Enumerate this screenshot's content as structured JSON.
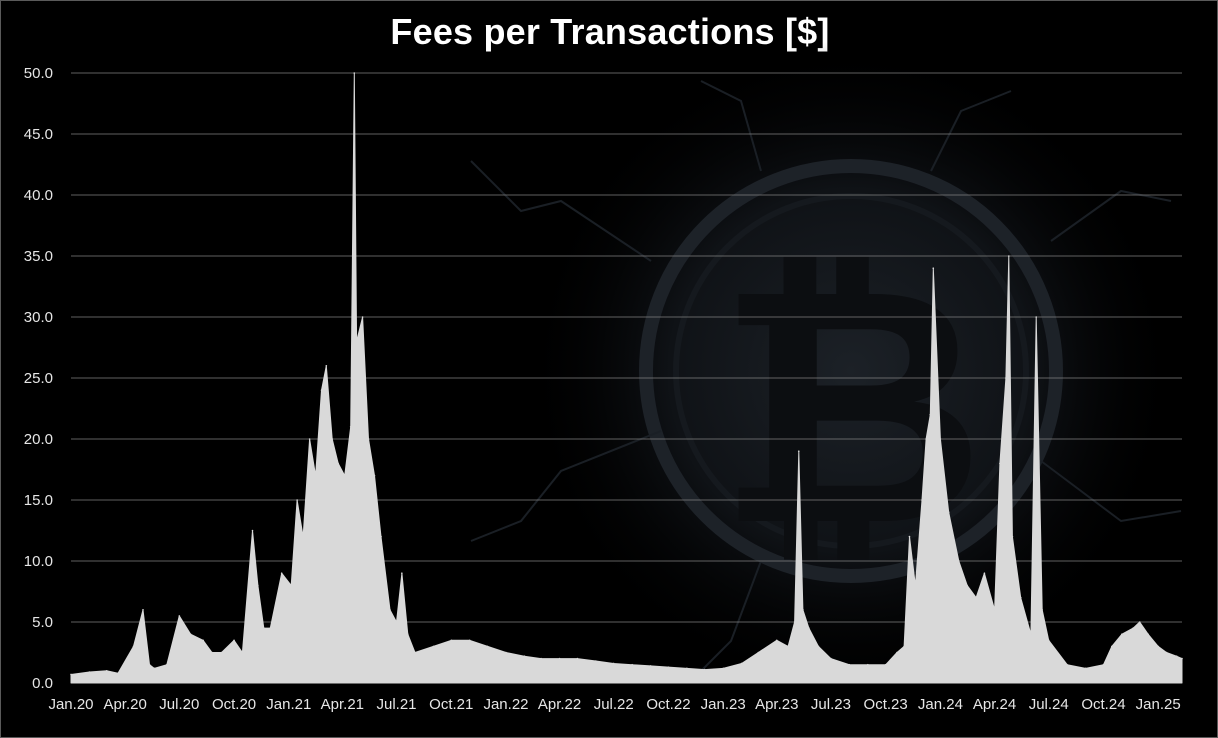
{
  "chart_data": {
    "type": "area",
    "title": "Fees per Transactions [$]",
    "xlabel": "",
    "ylabel": "",
    "ylim": [
      0,
      50
    ],
    "yticks": [
      "0.0",
      "5.0",
      "10.0",
      "15.0",
      "20.0",
      "25.0",
      "30.0",
      "35.0",
      "40.0",
      "45.0",
      "50.0"
    ],
    "xlim": [
      "2020-01-01",
      "2025-02-10"
    ],
    "xticks": [
      {
        "date": "2020-01-01",
        "label": "Jan.20"
      },
      {
        "date": "2020-04-01",
        "label": "Apr.20"
      },
      {
        "date": "2020-07-01",
        "label": "Jul.20"
      },
      {
        "date": "2020-10-01",
        "label": "Oct.20"
      },
      {
        "date": "2021-01-01",
        "label": "Jan.21"
      },
      {
        "date": "2021-04-01",
        "label": "Apr.21"
      },
      {
        "date": "2021-07-01",
        "label": "Jul.21"
      },
      {
        "date": "2021-10-01",
        "label": "Oct.21"
      },
      {
        "date": "2022-01-01",
        "label": "Jan.22"
      },
      {
        "date": "2022-04-01",
        "label": "Apr.22"
      },
      {
        "date": "2022-07-01",
        "label": "Jul.22"
      },
      {
        "date": "2022-10-01",
        "label": "Oct.22"
      },
      {
        "date": "2023-01-01",
        "label": "Jan.23"
      },
      {
        "date": "2023-04-01",
        "label": "Apr.23"
      },
      {
        "date": "2023-07-01",
        "label": "Jul.23"
      },
      {
        "date": "2023-10-01",
        "label": "Oct.23"
      },
      {
        "date": "2024-01-01",
        "label": "Jan.24"
      },
      {
        "date": "2024-04-01",
        "label": "Apr.24"
      },
      {
        "date": "2024-07-01",
        "label": "Jul.24"
      },
      {
        "date": "2024-10-01",
        "label": "Oct.24"
      },
      {
        "date": "2025-01-01",
        "label": "Jan.25"
      }
    ],
    "grid": true,
    "legend": "none",
    "fill_color": "#d9d9d9",
    "background_color": "#000000",
    "grid_color": "#808080",
    "series": [
      {
        "x": [
          "2020-01-01",
          "2020-02-01",
          "2020-03-01",
          "2020-03-20",
          "2020-04-15",
          "2020-05-01",
          "2020-05-12",
          "2020-05-20",
          "2020-06-10",
          "2020-07-01",
          "2020-07-20",
          "2020-08-10",
          "2020-08-25",
          "2020-09-10",
          "2020-10-01",
          "2020-10-15",
          "2020-11-01",
          "2020-11-10",
          "2020-11-20",
          "2020-12-01",
          "2020-12-20",
          "2021-01-05",
          "2021-01-15",
          "2021-01-25",
          "2021-02-05",
          "2021-02-15",
          "2021-02-25",
          "2021-03-05",
          "2021-03-15",
          "2021-03-25",
          "2021-04-05",
          "2021-04-15",
          "2021-04-21",
          "2021-04-25",
          "2021-05-05",
          "2021-05-15",
          "2021-05-25",
          "2021-06-05",
          "2021-06-20",
          "2021-07-01",
          "2021-07-10",
          "2021-07-20",
          "2021-08-01",
          "2021-09-01",
          "2021-10-01",
          "2021-11-01",
          "2021-12-01",
          "2022-01-01",
          "2022-02-01",
          "2022-03-01",
          "2022-04-01",
          "2022-05-01",
          "2022-06-01",
          "2022-07-01",
          "2022-08-01",
          "2022-09-01",
          "2022-10-01",
          "2022-11-01",
          "2022-12-01",
          "2023-01-01",
          "2023-02-01",
          "2023-03-01",
          "2023-04-01",
          "2023-04-20",
          "2023-05-01",
          "2023-05-08",
          "2023-05-15",
          "2023-05-25",
          "2023-06-10",
          "2023-07-01",
          "2023-08-01",
          "2023-09-01",
          "2023-10-01",
          "2023-10-20",
          "2023-11-01",
          "2023-11-10",
          "2023-11-20",
          "2023-12-01",
          "2023-12-08",
          "2023-12-15",
          "2023-12-20",
          "2024-01-01",
          "2024-01-15",
          "2024-02-01",
          "2024-02-15",
          "2024-03-01",
          "2024-03-15",
          "2024-04-01",
          "2024-04-10",
          "2024-04-20",
          "2024-04-25",
          "2024-05-01",
          "2024-05-15",
          "2024-06-01",
          "2024-06-10",
          "2024-06-20",
          "2024-07-01",
          "2024-08-01",
          "2024-09-01",
          "2024-10-01",
          "2024-10-15",
          "2024-11-01",
          "2024-11-20",
          "2024-12-01",
          "2024-12-15",
          "2025-01-01",
          "2025-01-15",
          "2025-02-01",
          "2025-02-10"
        ],
        "values": [
          0.7,
          0.9,
          1.0,
          0.8,
          3.0,
          6.0,
          1.5,
          1.2,
          1.5,
          5.5,
          4.0,
          3.5,
          2.5,
          2.5,
          3.5,
          2.5,
          12.5,
          8.0,
          4.5,
          4.5,
          9.0,
          8.0,
          15.0,
          12.0,
          20.0,
          17.0,
          24.0,
          26.0,
          20.0,
          18.0,
          17.0,
          21.0,
          50.0,
          28.0,
          30.0,
          20.0,
          17.0,
          12.0,
          6.0,
          5.0,
          9.0,
          4.0,
          2.5,
          3.0,
          3.5,
          3.5,
          3.0,
          2.5,
          2.2,
          2.0,
          2.0,
          2.0,
          1.8,
          1.6,
          1.5,
          1.4,
          1.3,
          1.2,
          1.1,
          1.2,
          1.6,
          2.5,
          3.5,
          3.0,
          5.0,
          19.0,
          6.0,
          4.5,
          3.0,
          2.0,
          1.5,
          1.5,
          1.5,
          2.5,
          3.0,
          12.0,
          8.0,
          15.0,
          20.0,
          22.0,
          34.0,
          20.0,
          14.0,
          10.0,
          8.0,
          7.0,
          9.0,
          6.0,
          18.0,
          25.0,
          35.0,
          12.0,
          7.0,
          4.0,
          30.0,
          6.0,
          3.5,
          1.5,
          1.2,
          1.5,
          3.0,
          4.0,
          4.5,
          5.0,
          4.0,
          3.0,
          2.5,
          2.2,
          2.0
        ]
      }
    ]
  }
}
